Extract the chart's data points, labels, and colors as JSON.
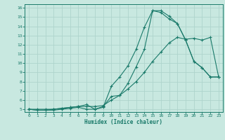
{
  "xlabel": "Humidex (Indice chaleur)",
  "ylabel": "",
  "bg_color": "#c8e8e0",
  "grid_color": "#aed4cc",
  "line_color": "#1a7a6a",
  "xlim": [
    -0.5,
    23.5
  ],
  "ylim": [
    4.7,
    16.4
  ],
  "xticks": [
    0,
    1,
    2,
    3,
    4,
    5,
    6,
    7,
    8,
    9,
    10,
    11,
    12,
    13,
    14,
    15,
    16,
    17,
    18,
    19,
    20,
    21,
    22,
    23
  ],
  "yticks": [
    5,
    6,
    7,
    8,
    9,
    10,
    11,
    12,
    13,
    14,
    15,
    16
  ],
  "series1_x": [
    0,
    1,
    2,
    3,
    4,
    5,
    6,
    7,
    8,
    9,
    10,
    11,
    12,
    13,
    14,
    15,
    16,
    17,
    18,
    19,
    20,
    21,
    22,
    23
  ],
  "series1_y": [
    5.0,
    4.9,
    4.9,
    4.9,
    5.0,
    5.1,
    5.2,
    5.0,
    5.0,
    5.2,
    7.5,
    8.5,
    9.7,
    11.5,
    13.9,
    15.7,
    15.7,
    15.1,
    14.3,
    12.5,
    10.2,
    9.5,
    8.5,
    8.5
  ],
  "series2_x": [
    0,
    1,
    2,
    3,
    4,
    5,
    6,
    7,
    8,
    9,
    10,
    11,
    12,
    13,
    14,
    15,
    16,
    17,
    18,
    19,
    20,
    21,
    22,
    23
  ],
  "series2_y": [
    5.0,
    4.9,
    4.9,
    5.0,
    5.1,
    5.2,
    5.3,
    5.5,
    5.0,
    5.3,
    6.4,
    6.5,
    7.8,
    9.6,
    11.5,
    15.7,
    15.5,
    14.8,
    14.3,
    12.5,
    10.2,
    9.5,
    8.5,
    8.5
  ],
  "series3_x": [
    0,
    1,
    2,
    3,
    4,
    5,
    6,
    7,
    8,
    9,
    10,
    11,
    12,
    13,
    14,
    15,
    16,
    17,
    18,
    19,
    20,
    21,
    22,
    23
  ],
  "series3_y": [
    5.0,
    5.0,
    5.0,
    5.0,
    5.1,
    5.2,
    5.3,
    5.3,
    5.3,
    5.4,
    6.0,
    6.5,
    7.2,
    8.0,
    9.0,
    10.2,
    11.2,
    12.2,
    12.8,
    12.6,
    12.7,
    12.5,
    12.8,
    8.5
  ]
}
